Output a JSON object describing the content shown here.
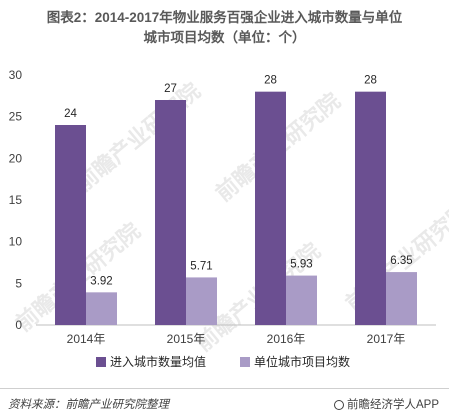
{
  "title_line1": "图表2：2014-2017年物业服务百强企业进入城市数量与单位",
  "title_line2": "城市项目均数（单位：个）",
  "watermark_text": "前瞻产业研究院",
  "footer": {
    "source": "资料来源：前瞻产业研究院整理",
    "brand": "前瞻经济学人APP",
    "brand_icon": "brand-logo-icon"
  },
  "chart_data": {
    "type": "bar",
    "categories": [
      "2014年",
      "2015年",
      "2016年",
      "2017年"
    ],
    "series": [
      {
        "name": "进入城市数量均值",
        "values": [
          24,
          27,
          28,
          28
        ],
        "color": "#6b4f91"
      },
      {
        "name": "单位城市项目均数",
        "values": [
          3.92,
          5.71,
          5.93,
          6.35
        ],
        "color": "#a99bc6"
      }
    ],
    "data_labels": [
      [
        "24",
        "27",
        "28",
        "28"
      ],
      [
        "3.92",
        "5.71",
        "5.93",
        "6.35"
      ]
    ],
    "ylim": [
      0,
      30
    ],
    "yticks": [
      "0",
      "5",
      "10",
      "15",
      "20",
      "25",
      "30"
    ],
    "grid": false,
    "legend_position": "bottom"
  }
}
